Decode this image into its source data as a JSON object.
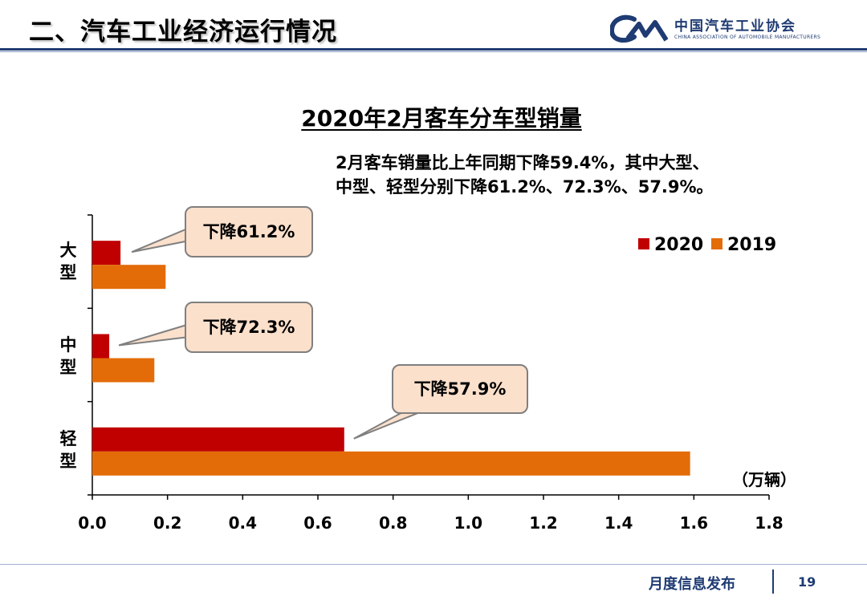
{
  "header": {
    "title": "二、汽车工业经济运行情况",
    "logo_text": "中国汽车工业协会",
    "logo_subtitle": "CHINA ASSOCIATION OF AUTOMOBILE MANUFACTURERS",
    "brand_color": "#1f3b73"
  },
  "note": {
    "line1": "2月客车销量比上年同期下降59.4%，其中大型、",
    "line2": "中型、轻型分别下降61.2%、72.3%、57.9%。"
  },
  "callouts": {
    "large": "下降61.2%",
    "medium": "下降72.3%",
    "light": "下降57.9%"
  },
  "chart_data": {
    "type": "bar",
    "orientation": "horizontal",
    "title": "2020年2月客车分车型销量",
    "categories": [
      "大型",
      "中型",
      "轻型"
    ],
    "series": [
      {
        "name": "2020",
        "color": "#c00000",
        "values": [
          0.075,
          0.045,
          0.67
        ]
      },
      {
        "name": "2019",
        "color": "#e36c09",
        "values": [
          0.195,
          0.165,
          1.59
        ]
      }
    ],
    "xlim": [
      0,
      1.8
    ],
    "xticks": [
      "0.0",
      "0.2",
      "0.4",
      "0.6",
      "0.8",
      "1.0",
      "1.2",
      "1.4",
      "1.6",
      "1.8"
    ],
    "unit": "（万辆）",
    "legend_position": "top-right",
    "grid": false
  },
  "footer": {
    "text": "月度信息发布",
    "page": "19"
  }
}
